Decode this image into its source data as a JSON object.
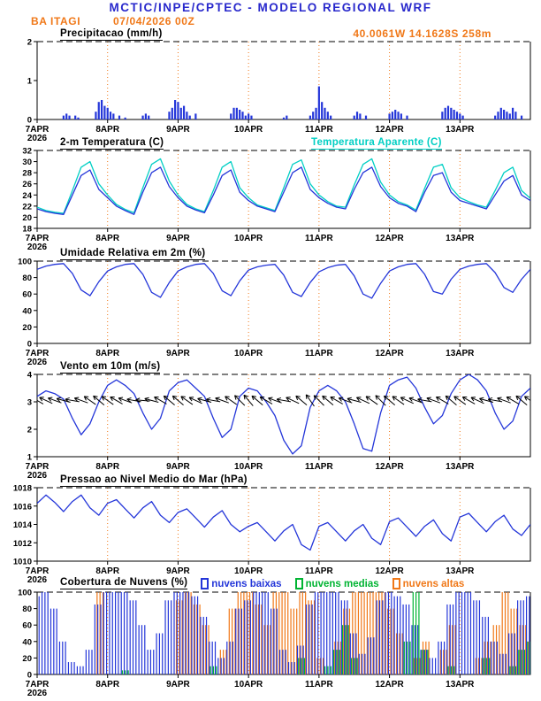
{
  "header": {
    "title": "MCTIC/INPE/CPTEC - MODELO REGIONAL WRF",
    "station": "BA ITAGI",
    "run": "07/04/2026 00Z",
    "location": "40.0061W 14.1628S 258m"
  },
  "colors": {
    "title_blue": "#2828cc",
    "orange": "#f07818",
    "line_blue": "#2436d9",
    "cyan": "#00cfc4",
    "green": "#00b432",
    "black": "#000000"
  },
  "x_axis": {
    "tick_labels": [
      "7APR",
      "8APR",
      "9APR",
      "10APR",
      "11APR",
      "12APR",
      "13APR"
    ],
    "year_label": "2026",
    "tick_hours": [
      0,
      24,
      48,
      72,
      96,
      120,
      144
    ],
    "end_hour": 168
  },
  "chart_data": [
    {
      "type": "bar",
      "title": "Precipitacao (mm/h)",
      "ylim": [
        0,
        2
      ],
      "yticks": [
        0,
        1,
        2
      ],
      "color_key": "line_blue",
      "points": [
        [
          9,
          0.1
        ],
        [
          10,
          0.15
        ],
        [
          11,
          0.1
        ],
        [
          13,
          0.1
        ],
        [
          14,
          0.05
        ],
        [
          20,
          0.2
        ],
        [
          21,
          0.45
        ],
        [
          22,
          0.5
        ],
        [
          23,
          0.35
        ],
        [
          24,
          0.3
        ],
        [
          25,
          0.2
        ],
        [
          26,
          0.15
        ],
        [
          28,
          0.1
        ],
        [
          30,
          0.05
        ],
        [
          36,
          0.1
        ],
        [
          37,
          0.15
        ],
        [
          38,
          0.1
        ],
        [
          45,
          0.2
        ],
        [
          46,
          0.3
        ],
        [
          47,
          0.5
        ],
        [
          48,
          0.45
        ],
        [
          49,
          0.3
        ],
        [
          50,
          0.35
        ],
        [
          51,
          0.2
        ],
        [
          52,
          0.1
        ],
        [
          54,
          0.15
        ],
        [
          66,
          0.15
        ],
        [
          67,
          0.3
        ],
        [
          68,
          0.3
        ],
        [
          69,
          0.25
        ],
        [
          70,
          0.2
        ],
        [
          71,
          0.1
        ],
        [
          72,
          0.15
        ],
        [
          73,
          0.1
        ],
        [
          84,
          0.05
        ],
        [
          85,
          0.1
        ],
        [
          93,
          0.1
        ],
        [
          94,
          0.2
        ],
        [
          95,
          0.3
        ],
        [
          96,
          0.85
        ],
        [
          97,
          0.45
        ],
        [
          98,
          0.3
        ],
        [
          99,
          0.2
        ],
        [
          100,
          0.1
        ],
        [
          108,
          0.1
        ],
        [
          109,
          0.2
        ],
        [
          110,
          0.15
        ],
        [
          112,
          0.1
        ],
        [
          120,
          0.15
        ],
        [
          121,
          0.2
        ],
        [
          122,
          0.25
        ],
        [
          123,
          0.2
        ],
        [
          124,
          0.15
        ],
        [
          126,
          0.1
        ],
        [
          138,
          0.2
        ],
        [
          139,
          0.3
        ],
        [
          140,
          0.35
        ],
        [
          141,
          0.3
        ],
        [
          142,
          0.25
        ],
        [
          143,
          0.2
        ],
        [
          144,
          0.15
        ],
        [
          145,
          0.1
        ],
        [
          156,
          0.1
        ],
        [
          157,
          0.2
        ],
        [
          158,
          0.3
        ],
        [
          159,
          0.25
        ],
        [
          160,
          0.2
        ],
        [
          161,
          0.15
        ],
        [
          162,
          0.3
        ],
        [
          163,
          0.2
        ],
        [
          165,
          0.1
        ]
      ]
    },
    {
      "type": "line",
      "title": "2-m Temperatura (C)",
      "subtitle": "Temperatura Aparente (C)",
      "ylim": [
        18,
        32
      ],
      "yticks": [
        18,
        20,
        22,
        24,
        26,
        28,
        30,
        32
      ],
      "x_step_hours": 3,
      "series": [
        {
          "name": "Temperatura Aparente (C)",
          "color_key": "cyan",
          "values": [
            21.8,
            21.2,
            20.9,
            20.7,
            24.8,
            29.0,
            30.0,
            26.0,
            24.0,
            22.3,
            21.4,
            20.8,
            25.3,
            29.5,
            30.5,
            26.5,
            24.0,
            22.3,
            21.5,
            21.0,
            24.8,
            29.0,
            30.0,
            25.3,
            23.5,
            22.2,
            21.7,
            21.2,
            25.3,
            29.5,
            30.3,
            26.0,
            24.0,
            22.8,
            22.0,
            21.8,
            25.8,
            29.5,
            30.5,
            26.3,
            24.0,
            22.8,
            22.2,
            21.3,
            25.2,
            29.0,
            29.5,
            25.3,
            23.5,
            22.8,
            22.2,
            21.8,
            24.8,
            28.0,
            29.0,
            24.8,
            23.4
          ]
        },
        {
          "name": "2-m Temperatura (C)",
          "color_key": "line_blue",
          "values": [
            21.5,
            21.0,
            20.7,
            20.5,
            24.0,
            27.5,
            28.5,
            25.0,
            23.5,
            22.0,
            21.2,
            20.5,
            24.5,
            28.0,
            29.0,
            25.5,
            23.5,
            22.0,
            21.3,
            20.8,
            24.0,
            27.5,
            28.5,
            24.5,
            23.0,
            22.0,
            21.5,
            21.0,
            24.5,
            28.0,
            29.0,
            25.0,
            23.5,
            22.5,
            21.8,
            21.5,
            25.0,
            28.0,
            29.0,
            25.5,
            23.5,
            22.5,
            22.0,
            21.0,
            24.5,
            27.5,
            28.0,
            24.5,
            23.0,
            22.5,
            22.0,
            21.5,
            24.0,
            26.5,
            27.5,
            24.0,
            23.0
          ]
        }
      ]
    },
    {
      "type": "line",
      "title": "Umidade Relativa em 2m (%)",
      "ylim": [
        0,
        100
      ],
      "yticks": [
        0,
        20,
        40,
        60,
        80,
        100
      ],
      "x_step_hours": 3,
      "series": [
        {
          "name": "Umidade Relativa em 2m (%)",
          "color_key": "line_blue",
          "values": [
            90,
            94,
            96,
            97,
            85,
            65,
            58,
            75,
            88,
            93,
            96,
            97,
            84,
            62,
            56,
            74,
            88,
            93,
            96,
            97,
            85,
            64,
            58,
            76,
            89,
            93,
            95,
            96,
            83,
            62,
            57,
            74,
            87,
            92,
            95,
            96,
            82,
            60,
            55,
            73,
            88,
            93,
            96,
            97,
            84,
            63,
            60,
            78,
            90,
            94,
            96,
            97,
            86,
            68,
            62,
            78,
            90
          ]
        }
      ]
    },
    {
      "type": "line",
      "title": "Vento em 10m (m/s)",
      "ylim": [
        1,
        4
      ],
      "yticks": [
        1,
        2,
        3,
        4
      ],
      "x_step_hours": 3,
      "series": [
        {
          "name": "Vento em 10m (m/s)",
          "color_key": "line_blue",
          "values": [
            3.2,
            3.4,
            3.3,
            3.1,
            2.4,
            1.8,
            2.2,
            3.0,
            3.6,
            3.8,
            3.6,
            3.3,
            2.6,
            2.0,
            2.4,
            3.4,
            3.7,
            3.8,
            3.5,
            3.2,
            2.4,
            1.7,
            2.0,
            3.2,
            3.5,
            3.4,
            3.0,
            2.5,
            1.6,
            1.1,
            1.4,
            2.8,
            3.4,
            3.6,
            3.4,
            3.0,
            2.2,
            1.3,
            1.2,
            2.6,
            3.6,
            3.8,
            3.9,
            3.5,
            2.8,
            2.2,
            2.5,
            3.3,
            3.8,
            4.0,
            3.8,
            3.4,
            2.6,
            2.0,
            2.3,
            3.2,
            3.5
          ]
        }
      ],
      "barbs": {
        "y_value": 3.05,
        "color_key": "black",
        "dirs_deg": [
          120,
          115,
          110,
          105,
          100,
          110,
          125,
          130,
          125,
          120,
          110,
          100,
          95,
          105,
          120,
          130,
          130,
          125,
          115,
          105,
          100,
          110,
          125,
          135,
          140,
          130,
          120,
          110,
          100,
          115,
          130,
          145,
          135,
          130,
          120,
          110,
          105,
          115,
          125,
          135,
          130,
          125,
          115,
          110,
          100,
          110,
          120,
          130,
          125,
          120,
          115,
          105,
          100,
          110,
          120,
          130,
          125
        ]
      }
    },
    {
      "type": "line",
      "title": "Pressao ao Nivel Medio do Mar (hPa)",
      "ylim": [
        1010,
        1018
      ],
      "yticks": [
        1010,
        1012,
        1014,
        1016,
        1018
      ],
      "x_step_hours": 3,
      "series": [
        {
          "name": "Pressao ao Nivel Medio do Mar (hPa)",
          "color_key": "line_blue",
          "values": [
            1016.3,
            1017.2,
            1016.4,
            1015.4,
            1016.5,
            1017.2,
            1015.8,
            1015.0,
            1016.3,
            1016.7,
            1015.7,
            1014.7,
            1015.8,
            1016.5,
            1015.0,
            1014.2,
            1015.3,
            1015.7,
            1014.7,
            1013.7,
            1014.8,
            1015.5,
            1014.0,
            1013.2,
            1013.8,
            1014.2,
            1013.2,
            1012.2,
            1013.3,
            1014.0,
            1011.8,
            1011.2,
            1013.8,
            1014.2,
            1013.2,
            1012.2,
            1013.3,
            1014.0,
            1012.5,
            1011.8,
            1014.3,
            1014.7,
            1013.7,
            1012.7,
            1013.8,
            1014.5,
            1013.0,
            1012.2,
            1014.8,
            1015.2,
            1014.2,
            1013.2,
            1014.3,
            1015.0,
            1013.5,
            1012.8,
            1014.0
          ]
        }
      ]
    },
    {
      "type": "bar-multi",
      "title": "Cobertura de Nuvens (%)",
      "ylim": [
        0,
        100
      ],
      "yticks": [
        0,
        20,
        40,
        60,
        80,
        100
      ],
      "x_step_hours": 3,
      "series": [
        {
          "name": "nuvens baixas",
          "color_key": "line_blue",
          "values": [
            95,
            100,
            80,
            40,
            15,
            10,
            30,
            85,
            100,
            100,
            100,
            90,
            60,
            30,
            50,
            90,
            100,
            100,
            95,
            70,
            40,
            20,
            40,
            80,
            90,
            100,
            100,
            80,
            30,
            15,
            35,
            85,
            100,
            100,
            100,
            90,
            50,
            25,
            45,
            90,
            100,
            95,
            85,
            60,
            30,
            20,
            40,
            85,
            100,
            100,
            90,
            70,
            40,
            25,
            50,
            90,
            95
          ]
        },
        {
          "name": "nuvens medias",
          "color_key": "green",
          "values": [
            0,
            0,
            0,
            0,
            0,
            0,
            0,
            0,
            0,
            0,
            5,
            0,
            0,
            0,
            0,
            0,
            0,
            0,
            0,
            0,
            10,
            0,
            0,
            0,
            0,
            0,
            0,
            0,
            0,
            0,
            20,
            0,
            0,
            10,
            30,
            60,
            20,
            0,
            0,
            0,
            0,
            0,
            40,
            100,
            30,
            0,
            0,
            10,
            0,
            0,
            0,
            20,
            0,
            0,
            10,
            30,
            40
          ]
        },
        {
          "name": "nuvens altas",
          "color_key": "orange",
          "values": [
            0,
            0,
            0,
            0,
            0,
            0,
            0,
            100,
            0,
            0,
            0,
            0,
            0,
            0,
            0,
            0,
            90,
            100,
            85,
            60,
            0,
            30,
            80,
            100,
            100,
            85,
            60,
            100,
            100,
            80,
            100,
            90,
            20,
            0,
            40,
            80,
            100,
            100,
            100,
            100,
            80,
            50,
            0,
            20,
            40,
            0,
            30,
            60,
            0,
            0,
            20,
            40,
            60,
            100,
            80,
            60,
            40
          ]
        }
      ]
    }
  ]
}
